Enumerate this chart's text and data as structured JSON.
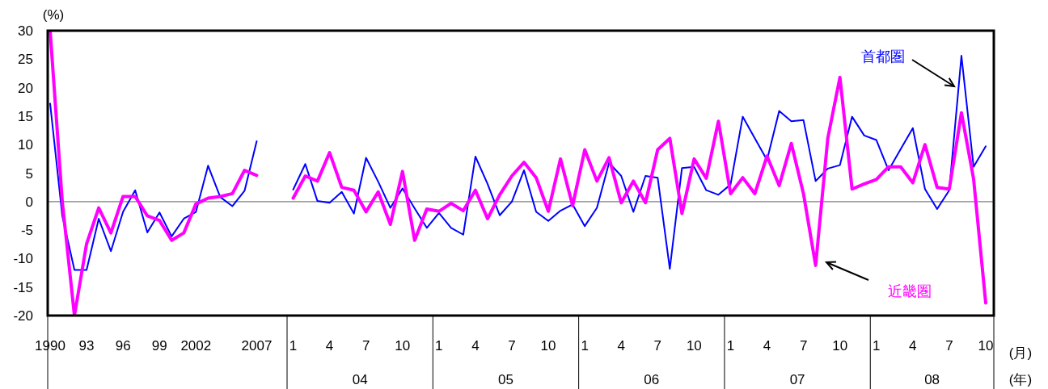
{
  "chart_data": {
    "type": "line",
    "ylabel": "(%)",
    "xlabel": "(月)",
    "categories": [
      "1990",
      null,
      null,
      "93",
      null,
      null,
      "96",
      null,
      null,
      "99",
      null,
      null,
      "2002",
      null,
      null,
      null,
      null,
      "2007",
      null,
      null,
      "1",
      null,
      null,
      "4",
      null,
      null,
      "7",
      null,
      null,
      "10",
      null,
      null,
      "1",
      null,
      null,
      "4",
      null,
      null,
      "7",
      null,
      null,
      "10",
      null,
      null,
      "1",
      null,
      null,
      "4",
      null,
      null,
      "7",
      null,
      null,
      "10",
      null,
      null,
      "1",
      null,
      null,
      "4",
      null,
      null,
      "7",
      null,
      null,
      "10",
      null,
      null,
      "1",
      null,
      null,
      "4",
      null,
      null,
      "7",
      null,
      null,
      "10"
    ],
    "series": [
      {
        "name": "首都圏",
        "color": "#0000ff",
        "values": [
          17.2,
          -2.5,
          -12,
          -12,
          -3,
          -8.7,
          -1.8,
          2,
          -5.4,
          -1.9,
          -6.1,
          -3,
          -1.8,
          6.3,
          0.8,
          -0.8,
          1.9,
          10.6,
          null,
          null,
          2.1,
          6.6,
          0.1,
          -0.2,
          1.7,
          -2.1,
          7.7,
          3.5,
          -1.1,
          2.3,
          -1.2,
          -4.6,
          -2,
          -4.6,
          -5.8,
          7.9,
          3.1,
          -2.4,
          0,
          5.5,
          -1.8,
          -3.4,
          -1.6,
          -0.5,
          -4.3,
          -1.1,
          6.8,
          4.5,
          -1.8,
          4.5,
          4.2,
          -11.8,
          5.9,
          6.1,
          2,
          1.2,
          3,
          14.9,
          11.1,
          7.3,
          15.9,
          14.1,
          14.3,
          3.6,
          5.8,
          6.4,
          14.9,
          11.6,
          10.8,
          5.5,
          9.2,
          12.9,
          2.2,
          -1.3,
          2,
          25.6,
          6.1,
          9.7
        ]
      },
      {
        "name": "近畿圏",
        "color": "#ff00ff",
        "values": [
          30,
          0,
          -20,
          -7.4,
          -1.1,
          -5.5,
          0.9,
          0.9,
          -2.5,
          -3.3,
          -6.8,
          -5.5,
          -0.4,
          0.6,
          0.9,
          1.4,
          5.5,
          4.6,
          null,
          null,
          0.6,
          4.5,
          3.6,
          8.6,
          2.5,
          2,
          -1.8,
          1.7,
          -4,
          5.3,
          -6.8,
          -1.3,
          -1.7,
          -0.3,
          -1.6,
          2,
          -3,
          1.2,
          4.5,
          6.9,
          4.2,
          -1.7,
          7.5,
          -0.7,
          9.1,
          3.6,
          7.7,
          -0.2,
          3.6,
          -0.2,
          9.1,
          11.1,
          -2.1,
          7.5,
          4.1,
          14.1,
          1.4,
          4.2,
          1.4,
          8,
          2.8,
          10.2,
          1.4,
          -11.2,
          11.1,
          21.8,
          2.2,
          3.1,
          3.9,
          6.1,
          6.1,
          3.3,
          10,
          2.5,
          2.2,
          15.6,
          4,
          -17.8
        ]
      }
    ],
    "ylim": [
      -20,
      30
    ],
    "yticks": [
      -20,
      -15,
      -10,
      -5,
      0,
      5,
      10,
      15,
      20,
      25,
      30
    ],
    "ref_lines": [
      {
        "axis": "y",
        "value": 0,
        "color": "#808080"
      }
    ],
    "annotations": [
      "04",
      "05",
      "06",
      "07",
      "08",
      "(年)"
    ]
  }
}
